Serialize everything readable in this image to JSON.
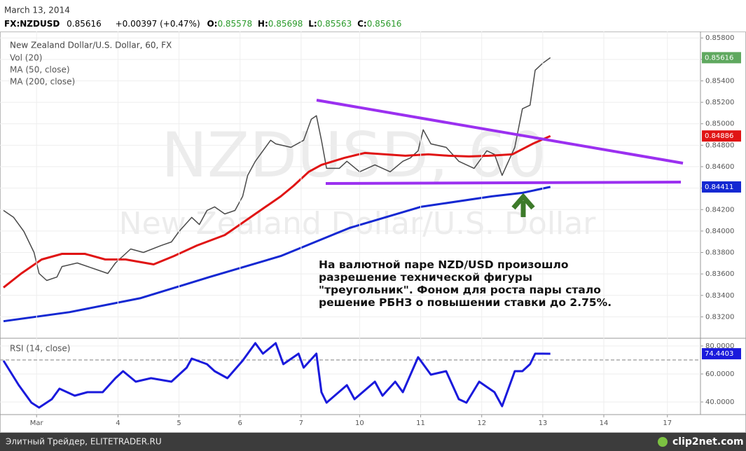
{
  "header": {
    "date": "March 13, 2014",
    "symbol": "FX:NZDUSD",
    "last": "0.85616",
    "change": "+0.00397 (+0.47%)",
    "o_label": "O:",
    "o": "0.85578",
    "h_label": "H:",
    "h": "0.85698",
    "l_label": "L:",
    "l": "0.85563",
    "c_label": "C:",
    "c": "0.85616"
  },
  "watermark": {
    "line1": "NZDUSD, 60",
    "line2": "New Zealand Dollar/U.S. Dollar"
  },
  "annotation": [
    "На валютной паре NZD/USD произошло",
    "разрешение технической фигуры",
    "\"треугольник\". Фоном для роста пары стало",
    "решение РБНЗ о повышении ставки до 2.75%."
  ],
  "footer": {
    "left": "Элитный Трейдер, ELITETRADER.RU",
    "right": "clip2net.com"
  },
  "chart_data": [
    {
      "type": "line",
      "title": "New Zealand Dollar/U.S. Dollar, 60, FX",
      "volume_label": "Vol (20)",
      "xlim": [
        0,
        274
      ],
      "ylim": [
        0.8302,
        0.8586
      ],
      "grid": true,
      "yticks": [
        {
          "value": 0.832,
          "label": "0.83200"
        },
        {
          "value": 0.834,
          "label": "0.83400"
        },
        {
          "value": 0.836,
          "label": "0.83600"
        },
        {
          "value": 0.838,
          "label": "0.83800"
        },
        {
          "value": 0.84,
          "label": "0.84000"
        },
        {
          "value": 0.842,
          "label": "0.84200"
        },
        {
          "value": 0.844,
          "label": "0.84400"
        },
        {
          "value": 0.846,
          "label": "0.84600"
        },
        {
          "value": 0.848,
          "label": "0.84800"
        },
        {
          "value": 0.85,
          "label": "0.85000"
        },
        {
          "value": 0.852,
          "label": "0.85200"
        },
        {
          "value": 0.854,
          "label": "0.85400"
        },
        {
          "value": 0.856,
          "label": "0.85600"
        },
        {
          "value": 0.858,
          "label": "0.85800"
        }
      ],
      "series": [
        {
          "color": "#4a4a4a",
          "last_label": "0.85616",
          "label_color": "#5fa85f",
          "x": [
            0,
            4,
            8,
            12,
            14,
            17,
            21,
            23,
            29,
            37,
            41,
            44,
            50,
            55,
            62,
            66,
            69,
            74,
            77,
            80,
            83,
            87,
            91,
            94,
            96,
            99,
            102,
            105,
            107,
            113,
            118,
            121,
            123,
            125,
            127,
            132,
            135,
            140,
            146,
            152,
            157,
            160,
            163,
            165,
            168,
            174,
            179,
            185,
            190,
            193,
            196,
            201,
            204,
            207,
            209,
            212,
            215
          ],
          "values": [
            0.84192,
            0.84127,
            0.83996,
            0.838,
            0.83604,
            0.83539,
            0.83571,
            0.83669,
            0.83702,
            0.83637,
            0.83604,
            0.83702,
            0.83833,
            0.838,
            0.83865,
            0.83898,
            0.83996,
            0.84127,
            0.84061,
            0.84192,
            0.84225,
            0.84159,
            0.84192,
            0.84323,
            0.84519,
            0.8465,
            0.84748,
            0.84846,
            0.84813,
            0.8478,
            0.84846,
            0.85042,
            0.85075,
            0.84846,
            0.84584,
            0.84584,
            0.8465,
            0.84552,
            0.84617,
            0.84552,
            0.8465,
            0.84682,
            0.84748,
            0.84944,
            0.84813,
            0.8478,
            0.8465,
            0.84584,
            0.84748,
            0.84715,
            0.84519,
            0.8478,
            0.8514,
            0.85173,
            0.85499,
            0.85565,
            0.85616
          ]
        },
        {
          "name": "MA (50, close)",
          "color": "#e01414",
          "last_label": "0.84886",
          "label_color": "#e01414",
          "x": [
            0,
            7,
            15,
            23,
            32,
            40,
            48,
            59,
            67,
            76,
            87,
            95,
            103,
            109,
            114,
            120,
            125,
            134,
            142,
            150,
            158,
            167,
            175,
            183,
            191,
            200,
            208,
            215
          ],
          "values": [
            0.83473,
            0.83604,
            0.83735,
            0.83787,
            0.83787,
            0.83735,
            0.83735,
            0.83689,
            0.83767,
            0.83865,
            0.83963,
            0.84094,
            0.84225,
            0.84323,
            0.84421,
            0.84552,
            0.84617,
            0.84682,
            0.84728,
            0.84715,
            0.84702,
            0.84715,
            0.84702,
            0.84695,
            0.84702,
            0.84715,
            0.84813,
            0.84886
          ]
        },
        {
          "name": "MA (200, close)",
          "color": "#1428d2",
          "last_label": "0.84411",
          "label_color": "#1428d2",
          "x": [
            0,
            26,
            54,
            81,
            109,
            136,
            164,
            192,
            204,
            215
          ],
          "values": [
            0.83159,
            0.83244,
            0.83375,
            0.83571,
            0.83767,
            0.84029,
            0.84225,
            0.84323,
            0.84356,
            0.84411
          ]
        }
      ]
    },
    {
      "type": "line",
      "title": "RSI (14, close)",
      "xlim": [
        0,
        274
      ],
      "ylim": [
        32,
        84.5
      ],
      "hline": 70,
      "grid": true,
      "yticks": [
        {
          "value": 40,
          "label": "40.0000"
        },
        {
          "value": 60,
          "label": "60.0000"
        },
        {
          "value": 80,
          "label": "80.0000"
        }
      ],
      "xticks": [
        {
          "value": 13,
          "label": "Mar"
        },
        {
          "value": 45,
          "label": "4"
        },
        {
          "value": 69,
          "label": "5"
        },
        {
          "value": 93,
          "label": "6"
        },
        {
          "value": 117,
          "label": "7"
        },
        {
          "value": 140,
          "label": "10"
        },
        {
          "value": 164,
          "label": "11"
        },
        {
          "value": 188,
          "label": "12"
        },
        {
          "value": 212,
          "label": "13"
        },
        {
          "value": 236,
          "label": "14"
        },
        {
          "value": 261,
          "label": "17"
        }
      ],
      "series": [
        {
          "color": "#1a1adc",
          "last_label": "74.4403",
          "label_color": "#1a1adc",
          "x": [
            0,
            6,
            11,
            14,
            19,
            22,
            28,
            33,
            39,
            44,
            47,
            52,
            58,
            66,
            72,
            74,
            80,
            83,
            88,
            94,
            99,
            102,
            107,
            110,
            116,
            118,
            123,
            125,
            127,
            135,
            138,
            146,
            149,
            154,
            157,
            163,
            168,
            174,
            179,
            182,
            187,
            193,
            196,
            201,
            204,
            207,
            209,
            212,
            215
          ],
          "values": [
            69.5,
            52,
            39.5,
            36,
            42,
            49.5,
            44.5,
            47,
            47,
            57,
            62,
            54.5,
            57,
            54.5,
            64.5,
            71,
            67,
            62,
            57,
            69.5,
            82,
            74.5,
            82,
            67,
            74.5,
            64.5,
            74.5,
            47,
            39.5,
            52,
            42,
            54.5,
            44.5,
            54.5,
            47,
            72,
            59.5,
            62,
            42,
            39.5,
            54.5,
            47,
            37,
            62,
            62,
            67,
            74.5,
            74.5,
            74.4403
          ]
        }
      ]
    }
  ]
}
